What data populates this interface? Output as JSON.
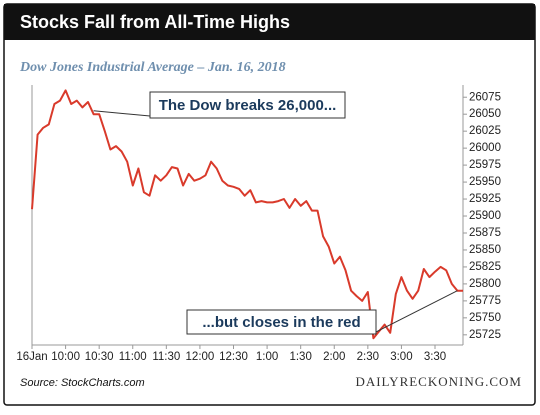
{
  "chart_data": {
    "type": "line",
    "title": "Stocks Fall from All-Time Highs",
    "subtitle": "Dow Jones Industrial Average – Jan. 16, 2018",
    "source": "Source: StockCharts.com",
    "brand": "DAILYRECKONING.COM",
    "x": [
      570,
      575,
      580,
      585,
      590,
      595,
      600,
      605,
      610,
      615,
      620,
      625,
      630,
      635,
      640,
      645,
      650,
      655,
      660,
      665,
      670,
      675,
      680,
      685,
      690,
      695,
      700,
      705,
      710,
      715,
      720,
      725,
      730,
      735,
      740,
      745,
      750,
      755,
      760,
      765,
      770,
      775,
      780,
      785,
      790,
      795,
      800,
      805,
      810,
      815,
      820,
      825,
      830,
      835,
      840,
      845,
      850,
      855,
      860,
      865,
      870,
      875,
      880,
      885,
      890,
      895,
      900,
      905,
      910,
      915,
      920,
      925,
      930,
      935,
      940,
      945,
      950,
      955
    ],
    "series": [
      {
        "name": "Dow Jones Industrial Average",
        "color": "#d93a2b",
        "values": [
          25910,
          26020,
          26030,
          26035,
          26065,
          26070,
          26085,
          26065,
          26070,
          26060,
          26068,
          26050,
          26050,
          26025,
          25998,
          26003,
          25995,
          25980,
          25945,
          25970,
          25935,
          25930,
          25960,
          25952,
          25960,
          25972,
          25970,
          25945,
          25962,
          25952,
          25955,
          25960,
          25980,
          25970,
          25952,
          25945,
          25943,
          25940,
          25930,
          25938,
          25920,
          25922,
          25920,
          25920,
          25922,
          25925,
          25912,
          25925,
          25915,
          25922,
          25908,
          25908,
          25870,
          25855,
          25830,
          25840,
          25820,
          25790,
          25782,
          25775,
          25788,
          25720,
          25730,
          25740,
          25728,
          25785,
          25810,
          25790,
          25778,
          25790,
          25822,
          25810,
          25818,
          25825,
          25820,
          25800,
          25790,
          25790
        ]
      }
    ],
    "xlim": [
      570,
      955
    ],
    "xticks": [
      {
        "value": 570,
        "label": "16Jan"
      },
      {
        "value": 600,
        "label": "10:00"
      },
      {
        "value": 630,
        "label": "10:30"
      },
      {
        "value": 660,
        "label": "11:00"
      },
      {
        "value": 690,
        "label": "11:30"
      },
      {
        "value": 720,
        "label": "12:00"
      },
      {
        "value": 750,
        "label": "12:30"
      },
      {
        "value": 780,
        "label": "1:00"
      },
      {
        "value": 810,
        "label": "1:30"
      },
      {
        "value": 840,
        "label": "2:00"
      },
      {
        "value": 870,
        "label": "2:30"
      },
      {
        "value": 900,
        "label": "3:00"
      },
      {
        "value": 930,
        "label": "3:30"
      }
    ],
    "ylim": [
      25710,
      26093
    ],
    "yticks": [
      25725,
      25750,
      25775,
      25800,
      25825,
      25850,
      25875,
      25900,
      25925,
      25950,
      25975,
      26000,
      26025,
      26050,
      26075
    ],
    "annotations": [
      {
        "text": "The Dow breaks 26,000...",
        "x": 625,
        "y": 26055
      },
      {
        "text": "...but closes in the red",
        "x": 950,
        "y": 25790
      }
    ]
  }
}
